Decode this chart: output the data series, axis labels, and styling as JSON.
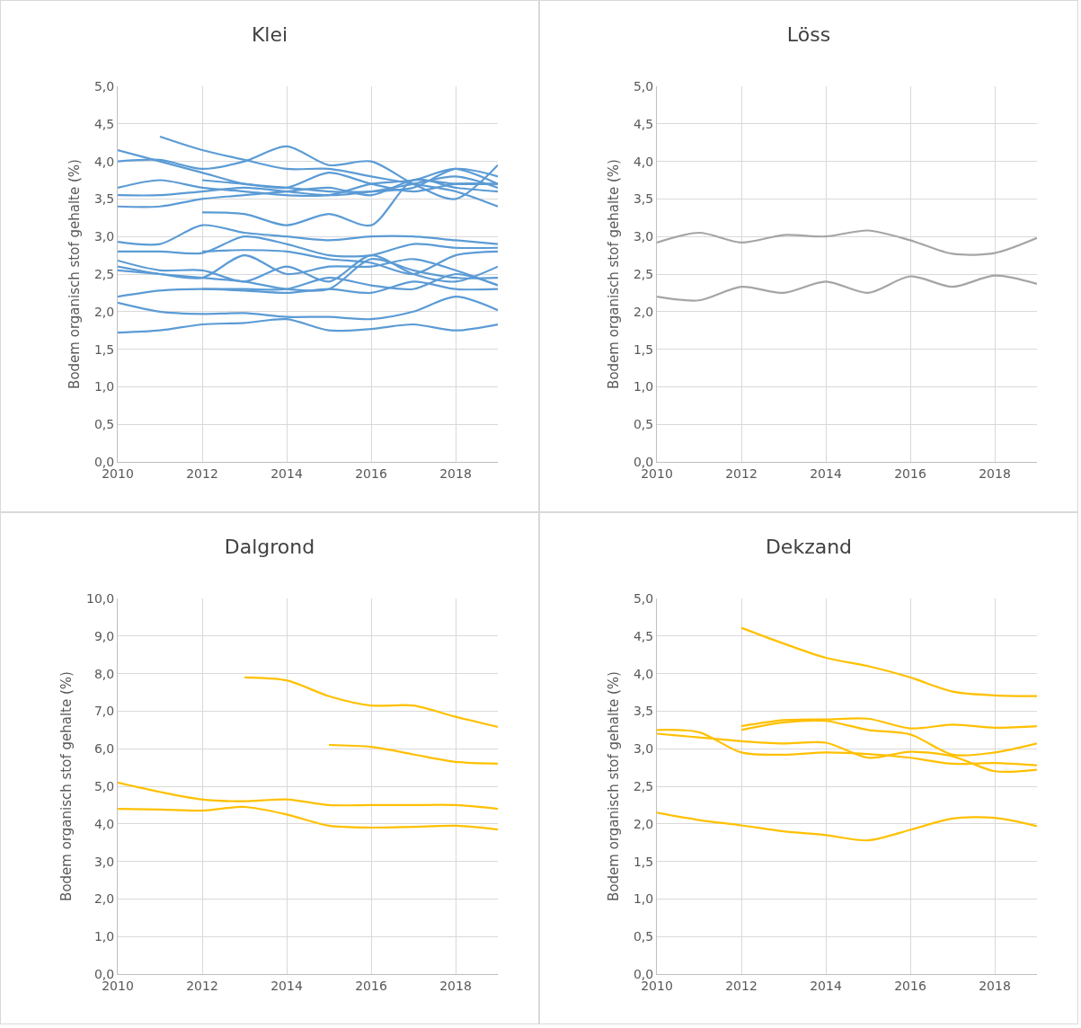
{
  "chart_data": [
    {
      "type": "line",
      "title": "Klei",
      "ylabel": "Bodem organisch stof gehalte (%)",
      "x": [
        2010,
        2011,
        2012,
        2013,
        2014,
        2015,
        2016,
        2017,
        2018,
        2019
      ],
      "xlim": [
        2010,
        2019
      ],
      "xticks": [
        2010,
        2012,
        2014,
        2016,
        2018
      ],
      "ylim": [
        0,
        5
      ],
      "yticks": [
        {
          "value": 0,
          "label": "0,0"
        },
        {
          "value": 0.5,
          "label": "0,5"
        },
        {
          "value": 1,
          "label": "1,0"
        },
        {
          "value": 1.5,
          "label": "1,5"
        },
        {
          "value": 2,
          "label": "2,0"
        },
        {
          "value": 2.5,
          "label": "2,5"
        },
        {
          "value": 3,
          "label": "3,0"
        },
        {
          "value": 3.5,
          "label": "3,5"
        },
        {
          "value": 4,
          "label": "4,0"
        },
        {
          "value": 4.5,
          "label": "4,5"
        },
        {
          "value": 5,
          "label": "5,0"
        }
      ],
      "grid": true,
      "marker": "none",
      "line_style": "solid",
      "series": [
        {
          "color": "#5b9bd5",
          "values": [
            4.15,
            4.0,
            3.85,
            3.7,
            3.65,
            3.6,
            3.6,
            3.65,
            3.9,
            3.8
          ]
        },
        {
          "color": "#5b9bd5",
          "values": [
            4.0,
            4.02,
            3.9,
            4.0,
            4.2,
            3.95,
            4.0,
            3.7,
            3.5,
            3.95
          ]
        },
        {
          "color": "#5b9bd5",
          "values": [
            null,
            4.33,
            4.15,
            4.02,
            3.9,
            3.9,
            3.8,
            3.7,
            3.6,
            3.4
          ]
        },
        {
          "color": "#5b9bd5",
          "values": [
            3.65,
            3.75,
            3.65,
            3.6,
            3.55,
            3.55,
            3.7,
            3.75,
            3.9,
            3.7
          ]
        },
        {
          "color": "#5b9bd5",
          "values": [
            3.55,
            3.55,
            3.6,
            3.65,
            3.6,
            3.55,
            3.6,
            3.7,
            3.8,
            3.65
          ]
        },
        {
          "color": "#5b9bd5",
          "values": [
            3.4,
            3.4,
            3.5,
            3.55,
            3.6,
            3.65,
            3.55,
            3.75,
            3.7,
            3.7
          ]
        },
        {
          "color": "#5b9bd5",
          "values": [
            null,
            null,
            3.75,
            3.7,
            3.65,
            3.85,
            3.7,
            3.6,
            3.7,
            3.7
          ]
        },
        {
          "color": "#5b9bd5",
          "values": [
            null,
            null,
            3.32,
            3.3,
            3.15,
            3.3,
            3.15,
            3.75,
            3.65,
            3.6
          ]
        },
        {
          "color": "#5b9bd5",
          "values": [
            2.93,
            2.9,
            3.15,
            3.05,
            3.0,
            2.95,
            3.0,
            3.0,
            2.95,
            2.9
          ]
        },
        {
          "color": "#5b9bd5",
          "values": [
            2.8,
            2.8,
            2.78,
            3.0,
            2.9,
            2.75,
            2.75,
            2.9,
            2.85,
            2.85
          ]
        },
        {
          "color": "#5b9bd5",
          "values": [
            null,
            null,
            2.8,
            2.82,
            2.8,
            2.7,
            2.65,
            2.5,
            2.75,
            2.8
          ]
        },
        {
          "color": "#5b9bd5",
          "values": [
            2.68,
            2.55,
            2.55,
            2.4,
            2.6,
            2.4,
            2.75,
            2.5,
            2.4,
            2.6
          ]
        },
        {
          "color": "#5b9bd5",
          "values": [
            2.6,
            2.5,
            2.45,
            2.75,
            2.5,
            2.6,
            2.6,
            2.7,
            2.55,
            2.35
          ]
        },
        {
          "color": "#5b9bd5",
          "values": [
            2.55,
            2.5,
            2.45,
            2.4,
            2.3,
            2.3,
            2.7,
            2.55,
            2.45,
            2.45
          ]
        },
        {
          "color": "#5b9bd5",
          "values": [
            null,
            null,
            2.3,
            2.3,
            2.3,
            2.45,
            2.35,
            2.3,
            2.5,
            2.35
          ]
        },
        {
          "color": "#5b9bd5",
          "values": [
            2.2,
            2.28,
            2.3,
            2.28,
            2.25,
            2.3,
            2.25,
            2.4,
            2.3,
            2.3
          ]
        },
        {
          "color": "#5b9bd5",
          "values": [
            2.12,
            2.0,
            1.97,
            1.98,
            1.93,
            1.93,
            1.9,
            2.0,
            2.2,
            2.02
          ]
        },
        {
          "color": "#5b9bd5",
          "values": [
            1.72,
            1.75,
            1.83,
            1.85,
            1.9,
            1.75,
            1.77,
            1.83,
            1.75,
            1.83
          ]
        }
      ]
    },
    {
      "type": "line",
      "title": "Löss",
      "ylabel": "Bodem organisch stof gehalte (%)",
      "x": [
        2010,
        2011,
        2012,
        2013,
        2014,
        2015,
        2016,
        2017,
        2018,
        2019
      ],
      "xlim": [
        2010,
        2019
      ],
      "xticks": [
        2010,
        2012,
        2014,
        2016,
        2018
      ],
      "ylim": [
        0,
        5
      ],
      "yticks": [
        {
          "value": 0,
          "label": "0,0"
        },
        {
          "value": 0.5,
          "label": "0,5"
        },
        {
          "value": 1,
          "label": "1,0"
        },
        {
          "value": 1.5,
          "label": "1,5"
        },
        {
          "value": 2,
          "label": "2,0"
        },
        {
          "value": 2.5,
          "label": "2,5"
        },
        {
          "value": 3,
          "label": "3,0"
        },
        {
          "value": 3.5,
          "label": "3,5"
        },
        {
          "value": 4,
          "label": "4,0"
        },
        {
          "value": 4.5,
          "label": "4,5"
        },
        {
          "value": 5,
          "label": "5,0"
        }
      ],
      "grid": true,
      "marker": "none",
      "line_style": "solid",
      "series": [
        {
          "color": "#a5a5a5",
          "values": [
            2.92,
            3.05,
            2.92,
            3.02,
            3.0,
            3.08,
            2.95,
            2.77,
            2.78,
            2.98
          ]
        },
        {
          "color": "#a5a5a5",
          "values": [
            2.2,
            2.15,
            2.33,
            2.25,
            2.4,
            2.25,
            2.47,
            2.33,
            2.48,
            2.37
          ]
        }
      ]
    },
    {
      "type": "line",
      "title": "Dalgrond",
      "ylabel": "Bodem organisch stof gehalte (%)",
      "x": [
        2010,
        2011,
        2012,
        2013,
        2014,
        2015,
        2016,
        2017,
        2018,
        2019
      ],
      "xlim": [
        2010,
        2019
      ],
      "xticks": [
        2010,
        2012,
        2014,
        2016,
        2018
      ],
      "ylim": [
        0,
        10
      ],
      "yticks": [
        {
          "value": 0,
          "label": "0,0"
        },
        {
          "value": 1,
          "label": "1,0"
        },
        {
          "value": 2,
          "label": "2,0"
        },
        {
          "value": 3,
          "label": "3,0"
        },
        {
          "value": 4,
          "label": "4,0"
        },
        {
          "value": 5,
          "label": "5,0"
        },
        {
          "value": 6,
          "label": "6,0"
        },
        {
          "value": 7,
          "label": "7,0"
        },
        {
          "value": 8,
          "label": "8,0"
        },
        {
          "value": 9,
          "label": "9,0"
        },
        {
          "value": 10,
          "label": "10,0"
        }
      ],
      "grid": true,
      "marker": "none",
      "line_style": "solid",
      "series": [
        {
          "color": "#ffc000",
          "values": [
            null,
            null,
            null,
            7.9,
            7.82,
            7.4,
            7.15,
            7.15,
            6.85,
            6.58
          ]
        },
        {
          "color": "#ffc000",
          "values": [
            null,
            null,
            null,
            null,
            null,
            6.1,
            6.05,
            5.85,
            5.65,
            5.6
          ]
        },
        {
          "color": "#ffc000",
          "values": [
            5.1,
            4.85,
            4.65,
            4.6,
            4.65,
            4.5,
            4.5,
            4.5,
            4.5,
            4.4
          ]
        },
        {
          "color": "#ffc000",
          "values": [
            4.4,
            4.38,
            4.35,
            4.45,
            4.25,
            3.95,
            3.9,
            3.92,
            3.95,
            3.85
          ]
        }
      ]
    },
    {
      "type": "line",
      "title": "Dekzand",
      "ylabel": "Bodem organisch stof gehalte (%)",
      "x": [
        2010,
        2011,
        2012,
        2013,
        2014,
        2015,
        2016,
        2017,
        2018,
        2019
      ],
      "xlim": [
        2010,
        2019
      ],
      "xticks": [
        2010,
        2012,
        2014,
        2016,
        2018
      ],
      "ylim": [
        0,
        5
      ],
      "yticks": [
        {
          "value": 0,
          "label": "0,0"
        },
        {
          "value": 0.5,
          "label": "0,5"
        },
        {
          "value": 1,
          "label": "1,0"
        },
        {
          "value": 1.5,
          "label": "1,5"
        },
        {
          "value": 2,
          "label": "2,0"
        },
        {
          "value": 2.5,
          "label": "2,5"
        },
        {
          "value": 3,
          "label": "3,0"
        },
        {
          "value": 3.5,
          "label": "3,5"
        },
        {
          "value": 4,
          "label": "4,0"
        },
        {
          "value": 4.5,
          "label": "4,5"
        },
        {
          "value": 5,
          "label": "5,0"
        }
      ],
      "grid": true,
      "marker": "none",
      "line_style": "solid",
      "series": [
        {
          "color": "#ffc000",
          "values": [
            null,
            null,
            4.61,
            4.4,
            4.21,
            4.1,
            3.95,
            3.76,
            3.71,
            3.7
          ]
        },
        {
          "color": "#ffc000",
          "values": [
            null,
            null,
            3.3,
            3.38,
            3.39,
            3.4,
            3.27,
            3.32,
            3.28,
            3.3
          ]
        },
        {
          "color": "#ffc000",
          "values": [
            null,
            null,
            3.25,
            3.35,
            3.37,
            3.25,
            3.19,
            2.92,
            2.95,
            3.07
          ]
        },
        {
          "color": "#ffc000",
          "values": [
            3.25,
            3.22,
            2.95,
            2.92,
            2.95,
            2.93,
            2.88,
            2.8,
            2.81,
            2.78
          ]
        },
        {
          "color": "#ffc000",
          "values": [
            3.2,
            3.15,
            3.1,
            3.07,
            3.08,
            2.88,
            2.96,
            2.9,
            2.7,
            2.72
          ]
        },
        {
          "color": "#ffc000",
          "values": [
            2.15,
            2.05,
            1.98,
            1.9,
            1.85,
            1.78,
            1.92,
            2.07,
            2.08,
            1.97
          ]
        }
      ]
    }
  ]
}
